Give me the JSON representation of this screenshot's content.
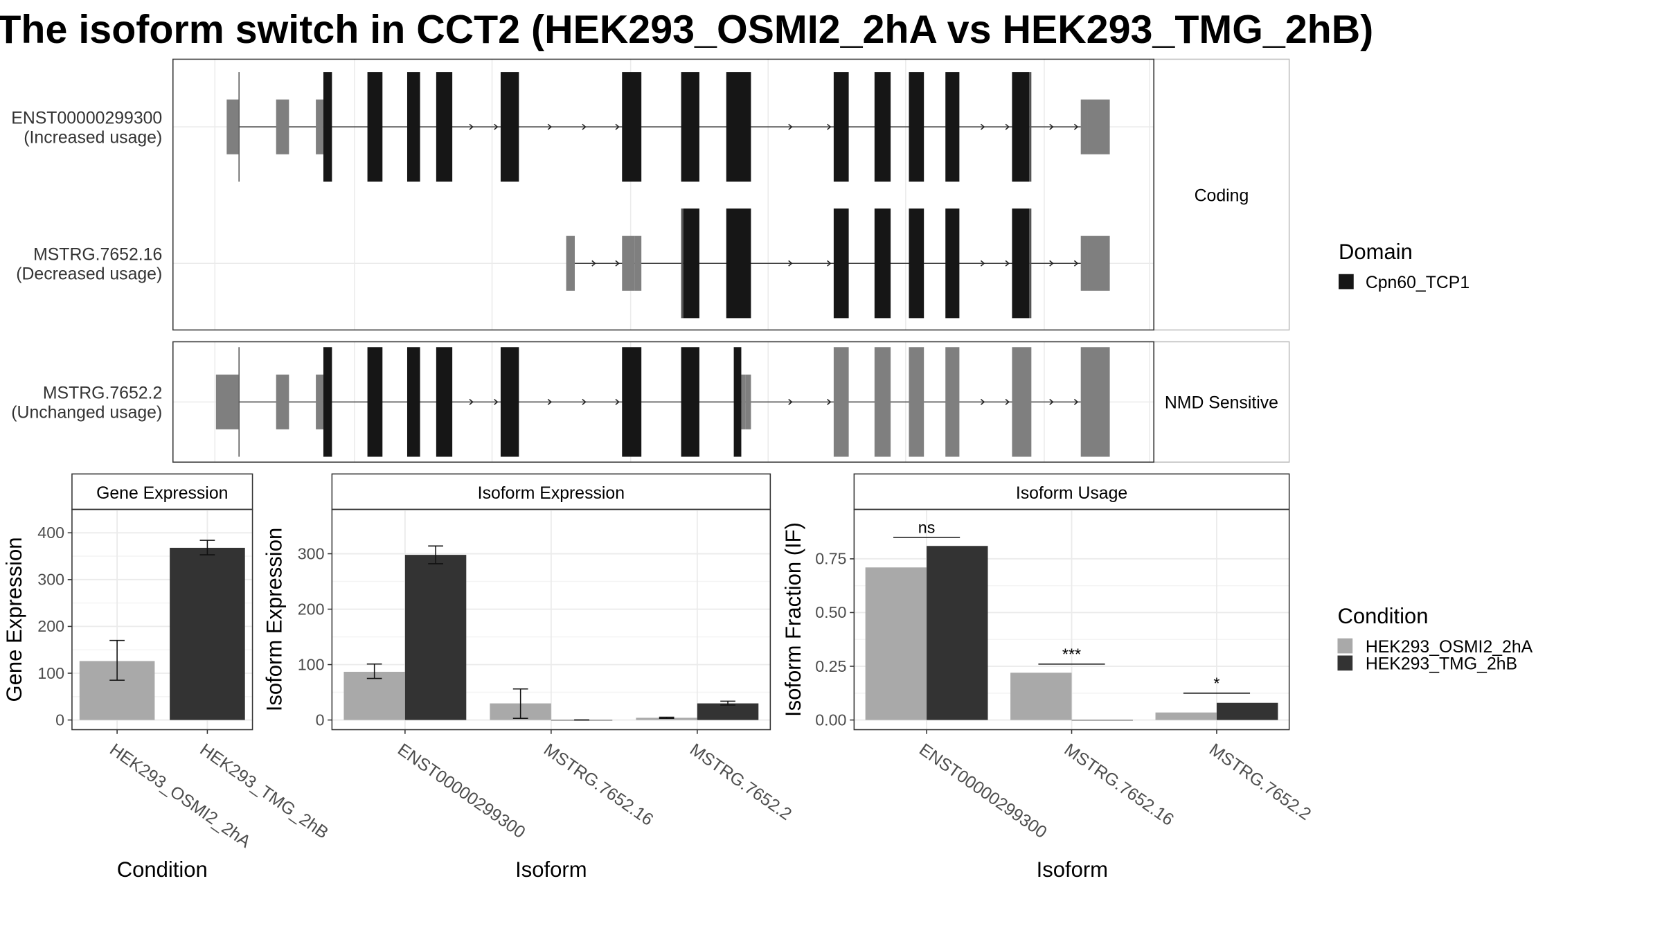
{
  "title": "The isoform switch in CCT2 (HEK293_OSMI2_2hA vs HEK293_TMG_2hB)",
  "colors": {
    "domain": "#161616",
    "exon_utr": "#7f7f7f",
    "intron_line": "#404040",
    "cond_a": "#a9a9a9",
    "cond_b": "#333333",
    "panel_border": "#333333",
    "grid_major": "#ebebeb",
    "strip_bg": "#ffffff"
  },
  "structure": {
    "groups": [
      {
        "strip": "Coding",
        "transcripts": [
          {
            "id": "ENST00000299300",
            "usage": "(Increased usage)",
            "line": [
              222,
              1006
            ],
            "utr": [
              [
                211,
                222
              ],
              [
                257,
                269
              ],
              [
                294,
                301
              ],
              [
                1006,
                1012
              ],
              [
                1012,
                1033
              ]
            ],
            "small": [
              [
                222,
                223
              ],
              [
                958,
                960
              ]
            ],
            "domain": [
              [
                301,
                309
              ],
              [
                342,
                356
              ],
              [
                379,
                391
              ],
              [
                406,
                421
              ],
              [
                466,
                483
              ],
              [
                579,
                597
              ],
              [
                634,
                651
              ],
              [
                676,
                699
              ],
              [
                776,
                790
              ],
              [
                814,
                829
              ],
              [
                846,
                860
              ],
              [
                880,
                893
              ],
              [
                942,
                958
              ]
            ],
            "arrows": [
              440,
              463,
              513,
              545,
              576,
              737,
              773,
              916,
              939,
              980,
              1003
            ]
          },
          {
            "id": "MSTRG.7652.16",
            "usage": "(Decreased usage)",
            "line": [
              535,
              1006
            ],
            "utr": [
              [
                527,
                535
              ],
              [
                579,
                591
              ],
              [
                591,
                597
              ],
              [
                1006,
                1012
              ],
              [
                1012,
                1033
              ]
            ],
            "small": [
              [
                634,
                636
              ],
              [
                958,
                960
              ]
            ],
            "domain": [
              [
                636,
                651
              ],
              [
                676,
                699
              ],
              [
                776,
                790
              ],
              [
                814,
                829
              ],
              [
                846,
                860
              ],
              [
                880,
                893
              ],
              [
                942,
                958
              ]
            ],
            "arrows": [
              554,
              576,
              737,
              773,
              916,
              939,
              980,
              1003
            ]
          }
        ]
      },
      {
        "strip": "NMD Sensitive",
        "transcripts": [
          {
            "id": "MSTRG.7652.2",
            "usage": "(Unchanged usage)",
            "line": [
              222,
              1006
            ],
            "utr": [
              [
                201,
                222
              ],
              [
                257,
                269
              ],
              [
                294,
                301
              ],
              [
                690,
                694
              ],
              [
                694,
                699
              ],
              [
                776,
                790
              ],
              [
                814,
                829
              ],
              [
                846,
                860
              ],
              [
                880,
                893
              ],
              [
                942,
                960
              ],
              [
                1006,
                1033
              ]
            ],
            "small": [
              [
                222,
                223
              ]
            ],
            "domain": [
              [
                301,
                309
              ],
              [
                342,
                356
              ],
              [
                379,
                391
              ],
              [
                406,
                421
              ],
              [
                466,
                483
              ],
              [
                579,
                597
              ],
              [
                634,
                651
              ],
              [
                683,
                690
              ]
            ],
            "arrows": [
              440,
              463,
              513,
              545,
              576,
              737,
              773,
              916,
              939,
              980,
              1003
            ]
          }
        ]
      }
    ]
  },
  "legends": {
    "domain": {
      "title": "Domain",
      "items": [
        {
          "label": "Cpn60_TCP1"
        }
      ]
    },
    "condition": {
      "title": "Condition",
      "items": [
        {
          "label": "HEK293_OSMI2_2hA"
        },
        {
          "label": "HEK293_TMG_2hB"
        }
      ]
    }
  },
  "chart_data": [
    {
      "type": "bar",
      "title": "Gene Expression",
      "xlabel": "Condition",
      "ylabel": "Gene Expression",
      "ylim": [
        0,
        450
      ],
      "yticks": [
        0,
        100,
        200,
        300,
        400
      ],
      "categories": [
        "HEK293_OSMI2_2hA",
        "HEK293_TMG_2hB"
      ],
      "series": [
        {
          "name": "HEK293_OSMI2_2hA",
          "values": [
            126,
            null
          ],
          "err_low": [
            85,
            null
          ],
          "err_high": [
            170,
            null
          ]
        },
        {
          "name": "HEK293_TMG_2hB",
          "values": [
            null,
            368
          ],
          "err_low": [
            null,
            353
          ],
          "err_high": [
            null,
            384
          ]
        }
      ]
    },
    {
      "type": "bar",
      "title": "Isoform Expression",
      "xlabel": "Isoform",
      "ylabel": "Isoform Expression",
      "ylim": [
        0,
        380
      ],
      "yticks": [
        0,
        100,
        200,
        300
      ],
      "categories": [
        "ENST00000299300",
        "MSTRG.7652.16",
        "MSTRG.7652.2"
      ],
      "series": [
        {
          "name": "HEK293_OSMI2_2hA",
          "values": [
            87,
            30,
            4
          ],
          "err_low": [
            75,
            3,
            3
          ],
          "err_high": [
            101,
            56,
            5
          ]
        },
        {
          "name": "HEK293_TMG_2hB",
          "values": [
            298,
            0,
            30
          ],
          "err_low": [
            282,
            0,
            27
          ],
          "err_high": [
            314,
            0,
            34
          ]
        }
      ]
    },
    {
      "type": "bar",
      "title": "Isoform Usage",
      "xlabel": "Isoform",
      "ylabel": "Isoform Fraction (IF)",
      "ylim": [
        0,
        0.98
      ],
      "yticks": [
        0.0,
        0.25,
        0.5,
        0.75
      ],
      "ytick_labels": [
        "0.00",
        "0.25",
        "0.50",
        "0.75"
      ],
      "categories": [
        "ENST00000299300",
        "MSTRG.7652.16",
        "MSTRG.7652.2"
      ],
      "series": [
        {
          "name": "HEK293_OSMI2_2hA",
          "values": [
            0.71,
            0.22,
            0.035
          ]
        },
        {
          "name": "HEK293_TMG_2hB",
          "values": [
            0.81,
            0.0,
            0.08
          ]
        }
      ],
      "significance": [
        "ns",
        "***",
        "*"
      ],
      "significance_y": [
        0.85,
        0.26,
        0.125
      ]
    }
  ]
}
